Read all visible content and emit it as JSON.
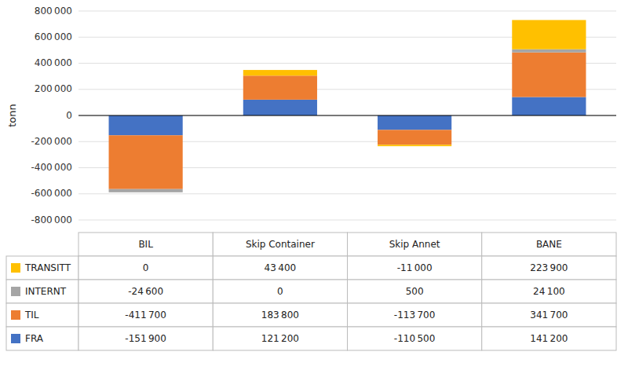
{
  "chart_data": {
    "type": "bar",
    "stacked": true,
    "grid": true,
    "tick_labels": "y",
    "ylabel": "tonn",
    "categories": [
      "BIL",
      "Skip Container",
      "Skip Annet",
      "BANE"
    ],
    "series": [
      {
        "name": "FRA",
        "color": "#4472C4",
        "values": [
          -151900,
          121200,
          -110500,
          141200
        ],
        "value_labels": [
          "-151 900",
          "121 200",
          "-110 500",
          "141 200"
        ]
      },
      {
        "name": "TIL",
        "color": "#ED7D31",
        "values": [
          -411700,
          183800,
          -113700,
          341700
        ],
        "value_labels": [
          "-411 700",
          "183 800",
          "-113 700",
          "341 700"
        ]
      },
      {
        "name": "INTERNT",
        "color": "#A5A5A5",
        "values": [
          -24600,
          0,
          500,
          24100
        ],
        "value_labels": [
          "-24 600",
          "0",
          "500",
          "24 100"
        ]
      },
      {
        "name": "TRANSITT",
        "color": "#FFC000",
        "values": [
          0,
          43400,
          -11000,
          223900
        ],
        "value_labels": [
          "0",
          "43 400",
          "-11 000",
          "223 900"
        ]
      }
    ],
    "ylim": [
      -800000,
      800000
    ],
    "yticks": [
      {
        "value": -800000,
        "label": "-800 000"
      },
      {
        "value": -600000,
        "label": "-600 000"
      },
      {
        "value": -400000,
        "label": "-400 000"
      },
      {
        "value": -200000,
        "label": "-200 000"
      },
      0,
      {
        "value": 200000,
        "label": "200 000"
      },
      {
        "value": 400000,
        "label": "400 000"
      },
      {
        "value": 600000,
        "label": "600 000"
      },
      {
        "value": 800000,
        "label": "800 000"
      }
    ]
  }
}
